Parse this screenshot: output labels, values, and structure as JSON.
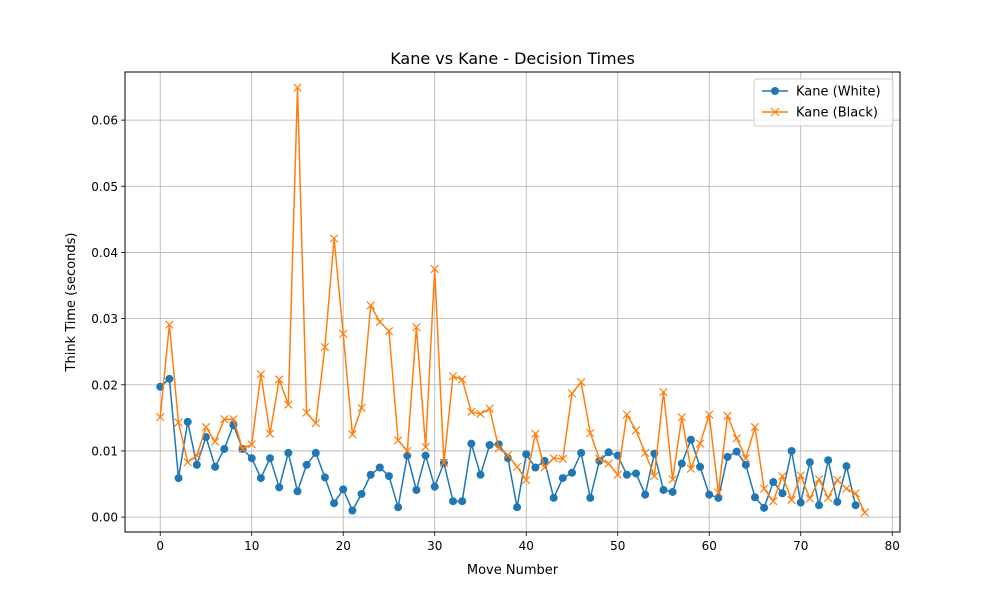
{
  "chart_data": {
    "type": "line",
    "title": "Kane vs Kane - Decision Times",
    "xlabel": "Move Number",
    "ylabel": "Think Time (seconds)",
    "xlim": [
      -3.85,
      80.85
    ],
    "ylim": [
      -0.00225,
      0.06727
    ],
    "xticks": [
      0,
      10,
      20,
      30,
      40,
      50,
      60,
      70,
      80
    ],
    "yticks": [
      0.0,
      0.01,
      0.02,
      0.03,
      0.04,
      0.05,
      0.06
    ],
    "ytick_labels": [
      "0.00",
      "0.01",
      "0.02",
      "0.03",
      "0.04",
      "0.05",
      "0.06"
    ],
    "grid": true,
    "legend_position": "top-right",
    "series": [
      {
        "name": "Kane (White)",
        "color": "#1f77b4",
        "marker": "circle",
        "x": [
          0,
          1,
          2,
          3,
          4,
          5,
          6,
          7,
          8,
          9,
          10,
          11,
          12,
          13,
          14,
          15,
          16,
          17,
          18,
          19,
          20,
          21,
          22,
          23,
          24,
          25,
          26,
          27,
          28,
          29,
          30,
          31,
          32,
          33,
          34,
          35,
          36,
          37,
          38,
          39,
          40,
          41,
          42,
          43,
          44,
          45,
          46,
          47,
          48,
          49,
          50,
          51,
          52,
          53,
          54,
          55,
          56,
          57,
          58,
          59,
          60,
          61,
          62,
          63,
          64,
          65,
          66,
          67,
          68,
          69,
          70,
          71,
          72,
          73,
          74,
          75,
          76
        ],
        "values": [
          0.0197,
          0.0209,
          0.0059,
          0.0144,
          0.0079,
          0.0121,
          0.0076,
          0.0103,
          0.0139,
          0.0103,
          0.0089,
          0.0059,
          0.0089,
          0.0045,
          0.0097,
          0.0039,
          0.0079,
          0.0097,
          0.006,
          0.0021,
          0.0042,
          0.001,
          0.0035,
          0.0064,
          0.0075,
          0.0062,
          0.0015,
          0.0093,
          0.0041,
          0.0093,
          0.0046,
          0.0082,
          0.0024,
          0.0024,
          0.0111,
          0.0064,
          0.0109,
          0.011,
          0.0089,
          0.0015,
          0.0095,
          0.0075,
          0.0085,
          0.0029,
          0.0059,
          0.0067,
          0.0097,
          0.0029,
          0.0085,
          0.0098,
          0.0093,
          0.0064,
          0.0066,
          0.0034,
          0.0096,
          0.0041,
          0.0038,
          0.0081,
          0.0117,
          0.0076,
          0.0034,
          0.0029,
          0.0091,
          0.0099,
          0.0079,
          0.003,
          0.0014,
          0.0053,
          0.0036,
          0.01,
          0.0022,
          0.0083,
          0.0018,
          0.0086,
          0.0023,
          0.0077,
          0.0018
        ]
      },
      {
        "name": "Kane (Black)",
        "color": "#ff7f0e",
        "marker": "x",
        "x": [
          0,
          1,
          2,
          3,
          4,
          5,
          6,
          7,
          8,
          9,
          10,
          11,
          12,
          13,
          14,
          15,
          16,
          17,
          18,
          19,
          20,
          21,
          22,
          23,
          24,
          25,
          26,
          27,
          28,
          29,
          30,
          31,
          32,
          33,
          34,
          35,
          36,
          37,
          38,
          39,
          40,
          41,
          42,
          43,
          44,
          45,
          46,
          47,
          48,
          49,
          50,
          51,
          52,
          53,
          54,
          55,
          56,
          57,
          58,
          59,
          60,
          61,
          62,
          63,
          64,
          65,
          66,
          67,
          68,
          69,
          70,
          71,
          72,
          73,
          74,
          75,
          76,
          77
        ],
        "values": [
          0.0151,
          0.0291,
          0.0143,
          0.0083,
          0.0093,
          0.0136,
          0.0114,
          0.0148,
          0.0148,
          0.0103,
          0.011,
          0.0216,
          0.0126,
          0.0208,
          0.017,
          0.0649,
          0.0158,
          0.0142,
          0.0257,
          0.0421,
          0.0277,
          0.0125,
          0.0165,
          0.032,
          0.0295,
          0.0281,
          0.0116,
          0.01,
          0.0287,
          0.0106,
          0.0375,
          0.0082,
          0.0213,
          0.0208,
          0.0159,
          0.0156,
          0.0164,
          0.0104,
          0.0094,
          0.0076,
          0.0056,
          0.0126,
          0.0075,
          0.0089,
          0.0088,
          0.0187,
          0.0204,
          0.0127,
          0.0088,
          0.0081,
          0.0064,
          0.0155,
          0.0131,
          0.0097,
          0.0062,
          0.0189,
          0.0057,
          0.0151,
          0.0073,
          0.0111,
          0.0155,
          0.0037,
          0.0153,
          0.0119,
          0.0089,
          0.0136,
          0.0043,
          0.0024,
          0.0062,
          0.0026,
          0.0063,
          0.0028,
          0.0057,
          0.0029,
          0.0056,
          0.0043,
          0.0036,
          0.0007
        ]
      }
    ]
  }
}
